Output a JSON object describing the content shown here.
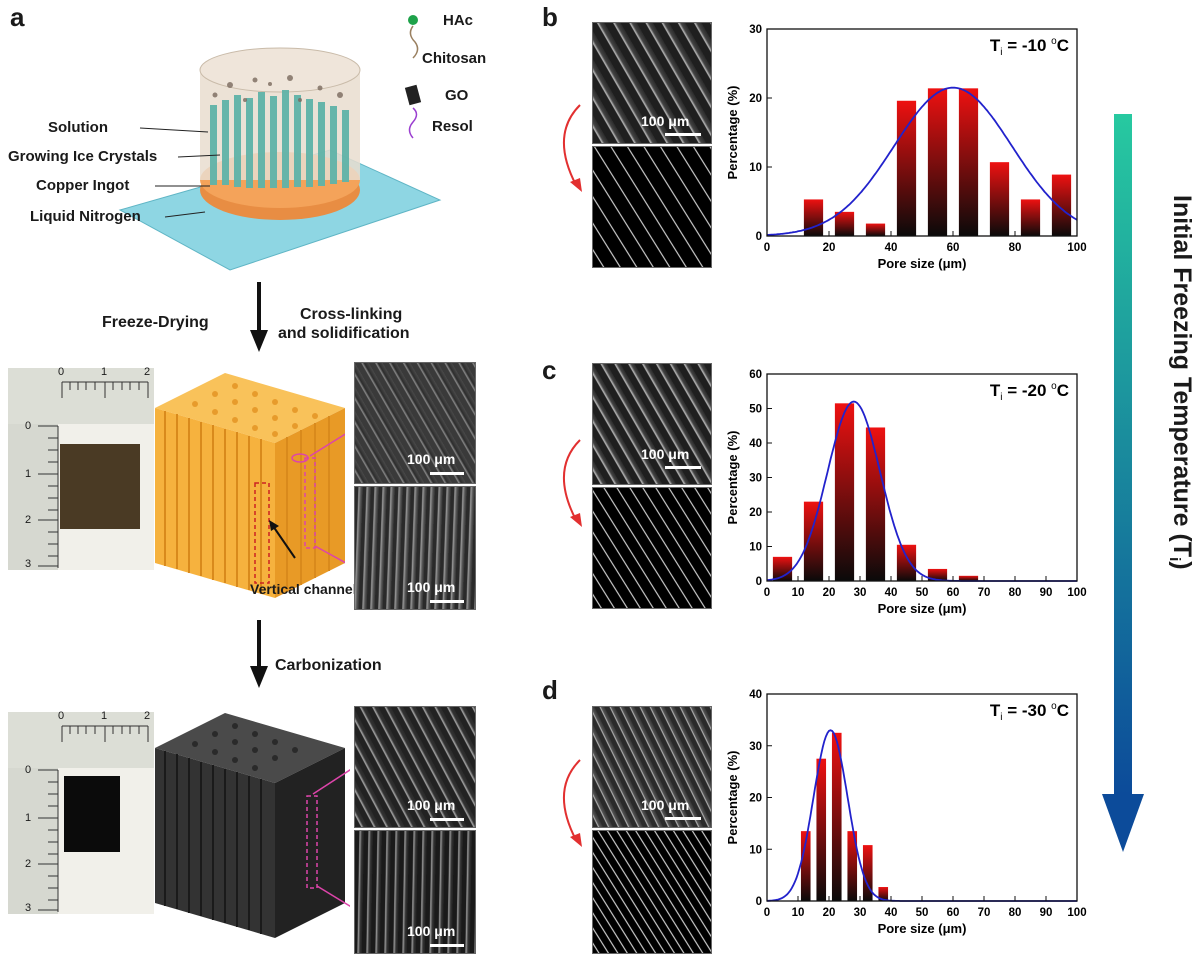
{
  "panels": {
    "a": "a",
    "b": "b",
    "c": "c",
    "d": "d"
  },
  "panel_a": {
    "legend": {
      "hac": "HAc",
      "chitosan": "Chitosan",
      "go": "GO",
      "resol": "Resol"
    },
    "setup_labels": {
      "solution": "Solution",
      "ice": "Growing Ice Crystals",
      "copper": "Copper Ingot",
      "nitrogen": "Liquid Nitrogen"
    },
    "step1": "Freeze-Drying",
    "step1_side_line1": "Cross-linking",
    "step1_side_line2": "and solidification",
    "step2": "Carbonization",
    "channels_label": "Vertical channels",
    "scale_label": "100 μm",
    "ruler_top": [
      "0",
      "1",
      "2"
    ],
    "ruler_side": [
      "0",
      "1",
      "2",
      "3"
    ]
  },
  "colors": {
    "bar_top": "#ee1111",
    "bar_bottom": "#0a0a0a",
    "fit_line": "#2222cc",
    "gradient_top": "#27c9a0",
    "gradient_bottom": "#0c4b9a"
  },
  "gradient_label": "Initial Freezing Temperature (T",
  "gradient_label_sub": "i",
  "gradient_label_end": ")",
  "chart_data": [
    {
      "type": "bar",
      "title": "T",
      "title_sub": "i",
      "title_value": " = -10 ",
      "title_unit": "oC",
      "xlabel": "Pore size (μm)",
      "ylabel": "Percentage (%)",
      "xlim": [
        0,
        100
      ],
      "ylim": [
        0,
        30
      ],
      "xticks": [
        "0",
        "20",
        "40",
        "60",
        "80",
        "100"
      ],
      "yticks": [
        "0",
        "10",
        "20",
        "30"
      ],
      "x": [
        15,
        25,
        35,
        45,
        55,
        65,
        75,
        85,
        95
      ],
      "values": [
        5.3,
        3.5,
        1.8,
        19.6,
        21.4,
        21.4,
        10.7,
        5.3,
        8.9
      ],
      "fit_mu": 60,
      "fit_sigma": 19,
      "fit_peak": 21.5
    },
    {
      "type": "bar",
      "title": "T",
      "title_sub": "i",
      "title_value": " = -20 ",
      "title_unit": "oC",
      "xlabel": "Pore size (μm)",
      "ylabel": "Percentage (%)",
      "xlim": [
        0,
        100
      ],
      "ylim": [
        0,
        60
      ],
      "xticks": [
        "0",
        "10",
        "20",
        "30",
        "40",
        "50",
        "60",
        "70",
        "80",
        "90",
        "100"
      ],
      "yticks": [
        "0",
        "10",
        "20",
        "30",
        "40",
        "50",
        "60"
      ],
      "x": [
        5,
        15,
        25,
        35,
        45,
        55,
        65
      ],
      "values": [
        7,
        23,
        51.5,
        44.5,
        10.5,
        3.5,
        1.5
      ],
      "fit_mu": 28,
      "fit_sigma": 8.5,
      "fit_peak": 52
    },
    {
      "type": "bar",
      "title": "T",
      "title_sub": "i",
      "title_value": " = -30 ",
      "title_unit": "oC",
      "xlabel": "Pore size (μm)",
      "ylabel": "Percentage (%)",
      "xlim": [
        0,
        100
      ],
      "ylim": [
        0,
        40
      ],
      "xticks": [
        "0",
        "10",
        "20",
        "30",
        "40",
        "50",
        "60",
        "70",
        "80",
        "90",
        "100"
      ],
      "yticks": [
        "0",
        "10",
        "20",
        "30",
        "40"
      ],
      "x": [
        12.5,
        17.5,
        22.5,
        27.5,
        32.5,
        37.5
      ],
      "values": [
        13.5,
        27.5,
        32.5,
        13.5,
        10.8,
        2.7
      ],
      "fit_mu": 20.5,
      "fit_sigma": 5.5,
      "fit_peak": 33
    }
  ]
}
